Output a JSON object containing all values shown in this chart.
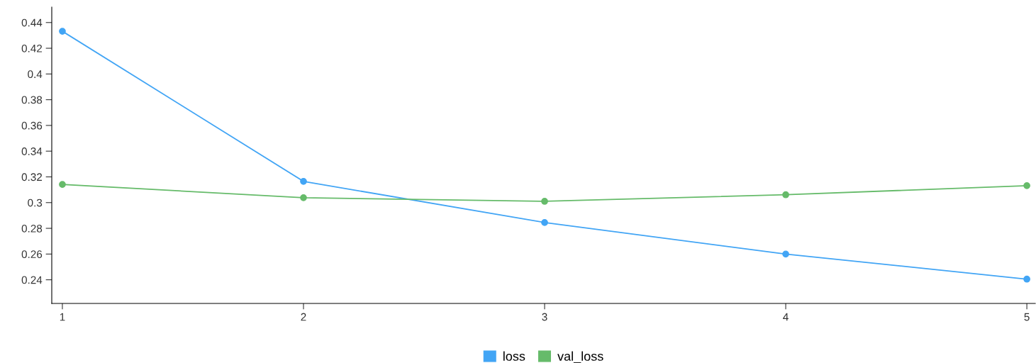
{
  "chart_data": {
    "type": "line",
    "x": [
      1,
      2,
      3,
      4,
      5
    ],
    "series": [
      {
        "name": "loss",
        "color": "#42a5f5",
        "values": [
          0.4332,
          0.3165,
          0.2845,
          0.26,
          0.2405
        ]
      },
      {
        "name": "val_loss",
        "color": "#66bb6a",
        "values": [
          0.3141,
          0.3038,
          0.301,
          0.3061,
          0.3132
        ]
      }
    ],
    "xlim": [
      0.956,
      5.035
    ],
    "xticks": [
      1,
      2,
      3,
      4,
      5
    ],
    "ylim": [
      0.2216,
      0.452
    ],
    "yticks": [
      0.24,
      0.26,
      0.28,
      0.3,
      0.32,
      0.34,
      0.36,
      0.38,
      0.4,
      0.42,
      0.44
    ],
    "marker": "circle",
    "line_style": "solid",
    "grid": false,
    "legend": "bottom"
  }
}
